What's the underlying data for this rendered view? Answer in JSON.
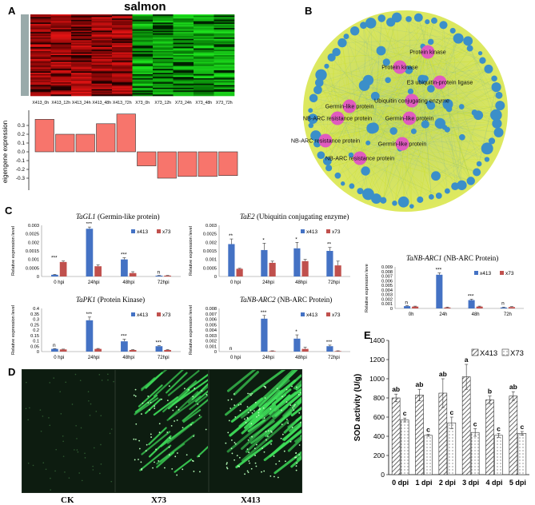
{
  "panels": {
    "A": "A",
    "B": "B",
    "C": "C",
    "D": "D",
    "E": "E"
  },
  "heatmap": {
    "title": "salmon",
    "columns": [
      "X413_0h",
      "X413_12h",
      "X413_24h",
      "X413_48h",
      "X413_72h",
      "X73_0h",
      "X73_12h",
      "X73_24h",
      "X73_48h",
      "X73_72h"
    ],
    "colors": {
      "red": "#b01a1a",
      "green": "#1fa01f",
      "black": "#000000"
    }
  },
  "eigengene": {
    "ylabel": "eigengene expression",
    "ticks": [
      "0.3",
      "0.2",
      "0.1",
      "0.0",
      "-0.1",
      "-0.2",
      "-0.3"
    ],
    "values": [
      0.37,
      0.2,
      0.2,
      0.32,
      0.43,
      -0.16,
      -0.3,
      -0.28,
      -0.28,
      -0.27
    ],
    "bar_color": "#f7756c"
  },
  "network": {
    "hub_labels": [
      "Protein kinase",
      "Protein kinase",
      "E3 ubiquitin-protein ligase",
      "Ubiquitin conjugating enzyme",
      "Germin-like protein",
      "NB-ARC resistance protein",
      "Germin-like protein",
      "NB-ARC resistance protein",
      "Germin-like protein",
      "NB-ARC resistance protein"
    ],
    "colors": {
      "edge": "#cfe13a",
      "node": "#3b8fc9",
      "hub": "#e05bbf"
    }
  },
  "chart_data": [
    {
      "type": "bar",
      "gene": "TaGL1",
      "desc": " (Germin-like protein)",
      "categories": [
        "0 hpi",
        "24hpi",
        "48hpi",
        "72hpi"
      ],
      "series": [
        {
          "name": "x413",
          "values": [
            0.0001,
            0.0028,
            0.001,
            5e-05
          ],
          "err": [
            2e-05,
            0.0001,
            0.0001,
            1e-05
          ]
        },
        {
          "name": "x73",
          "values": [
            0.00085,
            0.0006,
            0.0002,
            5e-05
          ],
          "err": [
            6e-05,
            8e-05,
            8e-05,
            1e-05
          ]
        }
      ],
      "ylim": [
        0,
        0.003
      ],
      "ticks": [
        "0",
        "0.0005",
        "0.001",
        "0.0015",
        "0.002",
        "0.0025",
        "0.003"
      ],
      "ylabel": "Relative expression level",
      "sig": [
        "***",
        "***",
        "***",
        "n"
      ],
      "legend": "top-right"
    },
    {
      "type": "bar",
      "gene": "TaE2",
      "desc": " (Ubiquitin conjugating enzyme)",
      "categories": [
        "0 hpi",
        "24hpi",
        "48hpi",
        "72hpi"
      ],
      "series": [
        {
          "name": "x413",
          "values": [
            0.0019,
            0.00155,
            0.00165,
            0.0015
          ],
          "err": [
            0.0003,
            0.0004,
            0.00035,
            0.0002
          ]
        },
        {
          "name": "x73",
          "values": [
            0.00045,
            0.0008,
            0.0009,
            0.00065
          ],
          "err": [
            3e-05,
            0.0001,
            0.0001,
            0.00025
          ]
        }
      ],
      "ylim": [
        0,
        0.003
      ],
      "ticks": [
        "0",
        "0.0005",
        "0.001",
        "0.0015",
        "0.002",
        "0.0025",
        "0.003"
      ],
      "ylabel": "Relative expression level",
      "sig": [
        "**",
        "*",
        "*",
        "**"
      ],
      "legend": "top-right"
    },
    {
      "type": "bar",
      "gene": "TaNB-ARC1",
      "desc": " (NB-ARC Protein)",
      "categories": [
        "0h",
        "24h",
        "48h",
        "72h"
      ],
      "series": [
        {
          "name": "x413",
          "values": [
            0.0005,
            0.0073,
            0.0018,
            0.0002
          ],
          "err": [
            0.0001,
            0.0004,
            0.0002,
            0.0001
          ]
        },
        {
          "name": "x73",
          "values": [
            0.0004,
            0.0002,
            0.0004,
            0.0003
          ],
          "err": [
            0.0001,
            0.0001,
            0.0001,
            0.0001
          ]
        }
      ],
      "ylim": [
        0,
        0.009
      ],
      "ticks": [
        "0",
        "0.001",
        "0.002",
        "0.003",
        "0.004",
        "0.005",
        "0.006",
        "0.007",
        "0.008",
        "0.009"
      ],
      "ylabel": "Relative expression level",
      "sig": [
        "n",
        "***",
        "***",
        "n"
      ],
      "legend": "top-right"
    },
    {
      "type": "bar",
      "gene": "TaPK1",
      "desc": " (Protein Kinase)",
      "categories": [
        "0 hpi",
        "24hpi",
        "48hpi",
        "72hpi"
      ],
      "series": [
        {
          "name": "x413",
          "values": [
            0.025,
            0.29,
            0.095,
            0.05
          ],
          "err": [
            0.003,
            0.03,
            0.02,
            0.005
          ]
        },
        {
          "name": "x73",
          "values": [
            0.02,
            0.025,
            0.015,
            0.015
          ],
          "err": [
            0.003,
            0.004,
            0.003,
            0.003
          ]
        }
      ],
      "ylim": [
        0,
        0.4
      ],
      "ticks": [
        "0",
        "0.05",
        "0.1",
        "0.15",
        "0.2",
        "0.25",
        "0.3",
        "0.35",
        "0.4"
      ],
      "ylabel": "Relative expression level",
      "sig": [
        "n",
        "***",
        "***",
        "***"
      ],
      "legend": "top-right"
    },
    {
      "type": "bar",
      "gene": "TaNB-ARC2",
      "desc": " (NB-ARC Protein)",
      "categories": [
        "0 hpi",
        "24hpi",
        "48hpi",
        "72hpi"
      ],
      "series": [
        {
          "name": "x413",
          "values": [
            0.0,
            0.0061,
            0.0024,
            0.001
          ],
          "err": [
            0.0,
            0.0006,
            0.0007,
            0.0002
          ]
        },
        {
          "name": "x73",
          "values": [
            0.0,
            0.0001,
            0.0005,
            0.0001
          ],
          "err": [
            0.0,
            5e-05,
            0.0003,
            5e-05
          ]
        }
      ],
      "ylim": [
        0,
        0.008
      ],
      "ticks": [
        "0",
        "0.001",
        "0.002",
        "0.003",
        "0.004",
        "0.005",
        "0.006",
        "0.007",
        "0.008"
      ],
      "ylabel": "Relative expression level",
      "sig": [
        "n",
        "***",
        "*",
        "***"
      ],
      "legend": "top-right"
    },
    {
      "type": "bar",
      "gene": "",
      "desc": "",
      "categories": [
        "0 dpi",
        "1 dpi",
        "2 dpi",
        "3 dpi",
        "4 dpi",
        "5 dpi"
      ],
      "series": [
        {
          "name": "X413",
          "values": [
            800,
            830,
            850,
            1020,
            780,
            820
          ],
          "err": [
            40,
            60,
            150,
            130,
            40,
            45
          ]
        },
        {
          "name": "X73",
          "values": [
            570,
            410,
            540,
            440,
            410,
            430
          ],
          "err": [
            20,
            10,
            60,
            40,
            20,
            20
          ]
        }
      ],
      "ylim": [
        0,
        1400
      ],
      "ticks": [
        "0",
        "200",
        "400",
        "600",
        "800",
        "1000",
        "1200",
        "1400"
      ],
      "ylabel": "SOD activity  (U/g)",
      "sig_a": [
        "ab",
        "ab",
        "ab",
        "a",
        "b",
        "ab"
      ],
      "sig_b": [
        "c",
        "c",
        "c",
        "c",
        "c",
        "c"
      ],
      "legend": "top-right"
    }
  ],
  "colors": {
    "x413": "#4472c4",
    "x73": "#c0504d"
  },
  "photos": {
    "labels": [
      "CK",
      "X73",
      "X413"
    ]
  }
}
